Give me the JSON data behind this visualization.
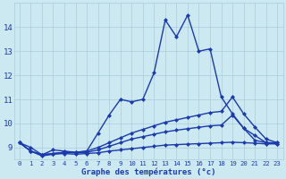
{
  "xlabel": "Graphe des températures (°c)",
  "hours": [
    0,
    1,
    2,
    3,
    4,
    5,
    6,
    7,
    8,
    9,
    10,
    11,
    12,
    13,
    14,
    15,
    16,
    17,
    18,
    19,
    20,
    21,
    22,
    23
  ],
  "line1": [
    9.2,
    9.0,
    8.7,
    8.9,
    8.85,
    8.8,
    8.85,
    9.6,
    10.35,
    11.0,
    10.9,
    11.0,
    12.1,
    14.3,
    13.6,
    14.5,
    13.0,
    13.1,
    11.1,
    10.4,
    9.8,
    9.3,
    9.2,
    9.2
  ],
  "line2": [
    9.2,
    8.85,
    8.7,
    8.75,
    8.8,
    8.8,
    8.85,
    9.0,
    9.2,
    9.4,
    9.6,
    9.75,
    9.9,
    10.05,
    10.15,
    10.25,
    10.35,
    10.45,
    10.5,
    11.1,
    10.4,
    9.85,
    9.35,
    9.2
  ],
  "line3": [
    9.2,
    8.85,
    8.7,
    8.75,
    8.8,
    8.78,
    8.8,
    8.9,
    9.05,
    9.2,
    9.35,
    9.45,
    9.55,
    9.65,
    9.72,
    9.78,
    9.84,
    9.9,
    9.93,
    10.35,
    9.8,
    9.5,
    9.2,
    9.15
  ],
  "line4": [
    9.2,
    8.85,
    8.65,
    8.72,
    8.75,
    8.72,
    8.75,
    8.78,
    8.85,
    8.9,
    8.95,
    9.0,
    9.05,
    9.1,
    9.12,
    9.14,
    9.16,
    9.18,
    9.2,
    9.22,
    9.2,
    9.18,
    9.15,
    9.15
  ],
  "line_color": "#1a3aad",
  "bg_color": "#cce8f0",
  "grid_color": "#aaccda",
  "ylim": [
    8.5,
    15.0
  ],
  "yticks": [
    9,
    10,
    11,
    12,
    13,
    14
  ],
  "marker": "D",
  "markersize": 2.5,
  "linewidth": 1.0
}
